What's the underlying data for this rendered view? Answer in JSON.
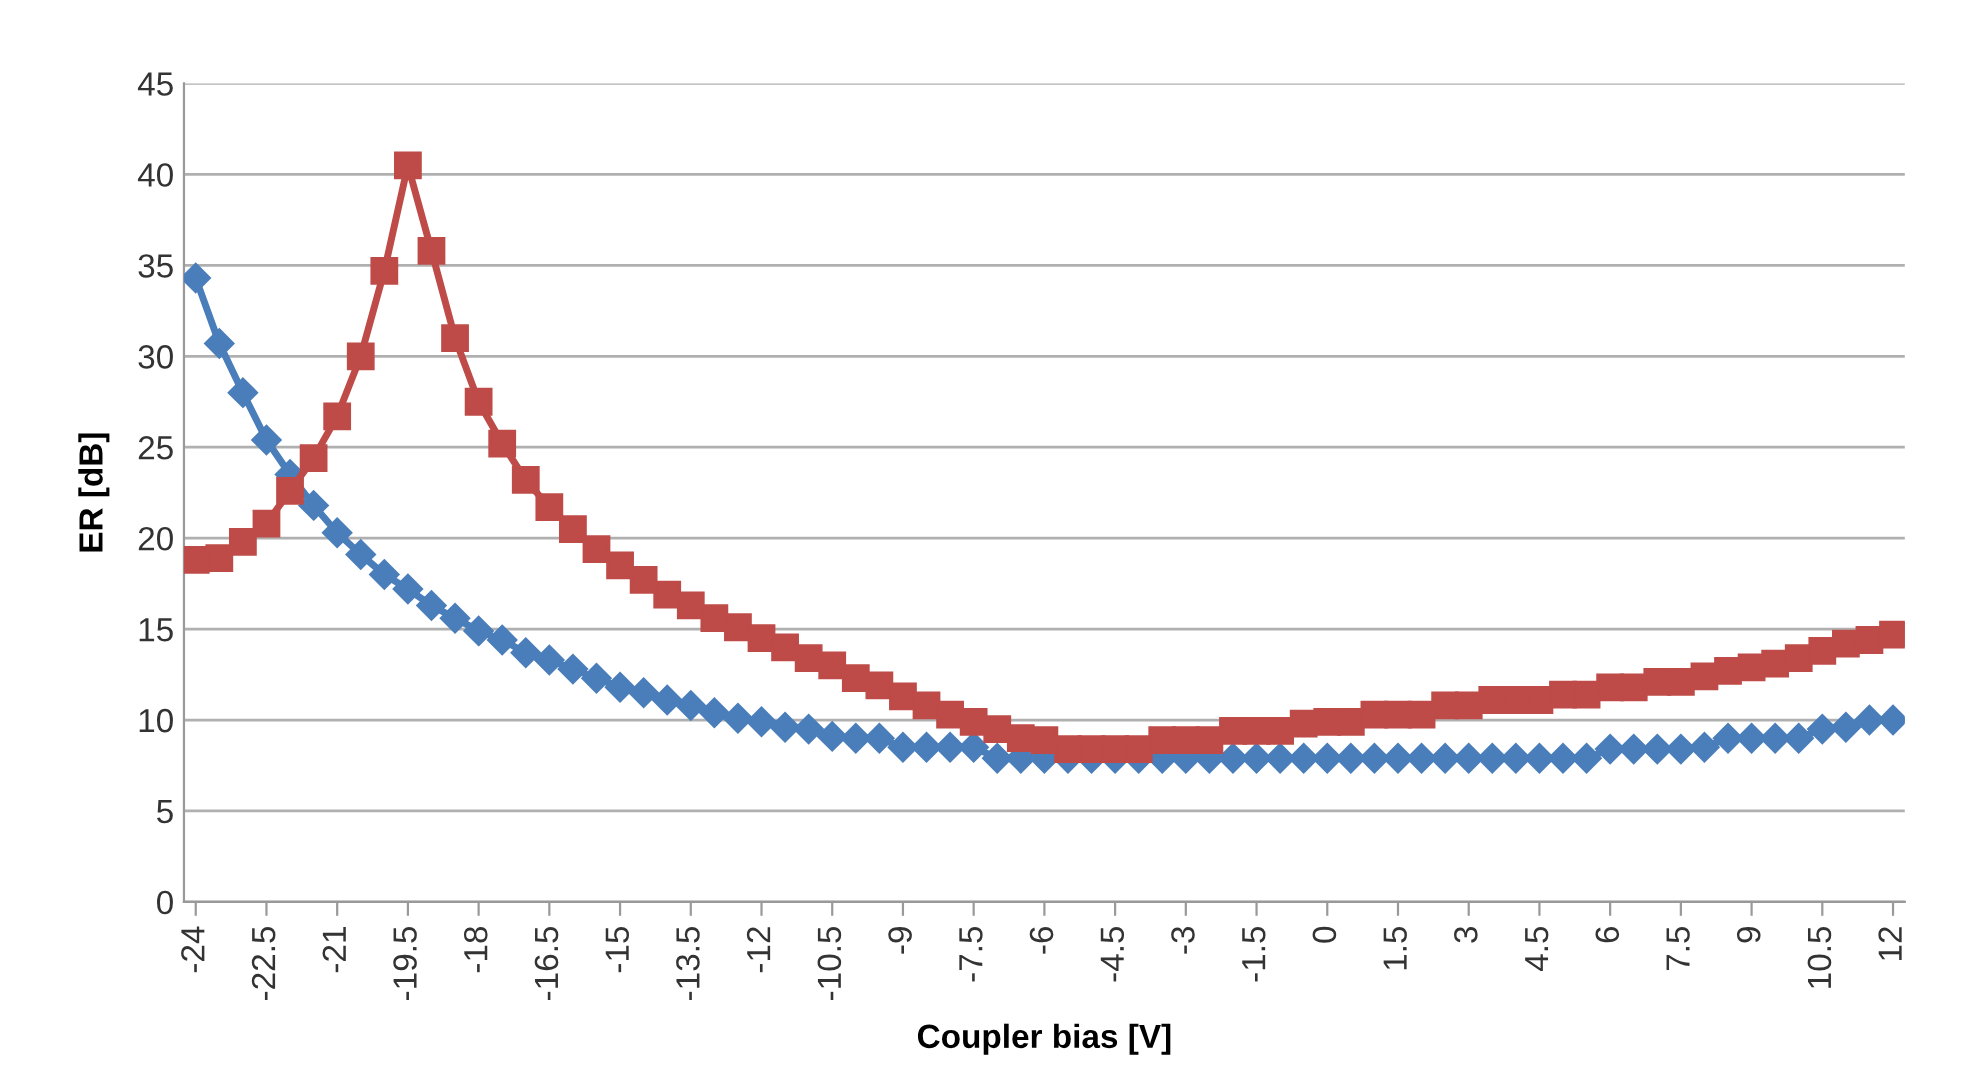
{
  "chart_data": {
    "type": "line",
    "xlabel": "Coupler bias [V]",
    "ylabel": "ER [dB]",
    "x": [
      -24,
      -23.5,
      -23,
      -22.5,
      -22,
      -21.5,
      -21,
      -20.5,
      -20,
      -19.5,
      -19,
      -18.5,
      -18,
      -17.5,
      -17,
      -16.5,
      -16,
      -15.5,
      -15,
      -14.5,
      -14,
      -13.5,
      -13,
      -12.5,
      -12,
      -11.5,
      -11,
      -10.5,
      -10,
      -9.5,
      -9,
      -8.5,
      -8,
      -7.5,
      -7,
      -6.5,
      -6,
      -5.5,
      -5,
      -4.5,
      -4,
      -3.5,
      -3,
      -2.5,
      -2,
      -1.5,
      -1,
      -0.5,
      0,
      0.5,
      1,
      1.5,
      2,
      2.5,
      3,
      3.5,
      4,
      4.5,
      5,
      5.5,
      6,
      6.5,
      7,
      7.5,
      8,
      8.5,
      9,
      9.5,
      10,
      10.5,
      11,
      11.5,
      12
    ],
    "series": [
      {
        "color": "#4a7ebb",
        "marker": "diamond",
        "values": [
          34.3,
          30.7,
          28.0,
          25.4,
          23.5,
          21.8,
          20.3,
          19.1,
          18.0,
          17.2,
          16.3,
          15.6,
          14.9,
          14.4,
          13.7,
          13.3,
          12.8,
          12.3,
          11.8,
          11.5,
          11.1,
          10.8,
          10.4,
          10.1,
          9.9,
          9.6,
          9.5,
          9.1,
          9.0,
          9.0,
          8.5,
          8.5,
          8.5,
          8.5,
          7.9,
          7.9,
          7.9,
          7.9,
          7.9,
          7.9,
          7.9,
          7.9,
          7.9,
          7.9,
          7.9,
          7.9,
          7.9,
          7.9,
          7.9,
          7.9,
          7.9,
          7.9,
          7.9,
          7.9,
          7.9,
          7.9,
          7.9,
          7.9,
          7.9,
          7.9,
          8.4,
          8.4,
          8.4,
          8.4,
          8.5,
          9.0,
          9.0,
          9.0,
          9.0,
          9.5,
          9.6,
          10.0,
          10.0
        ]
      },
      {
        "color": "#be4b48",
        "marker": "square",
        "values": [
          18.8,
          18.9,
          19.8,
          20.8,
          22.6,
          24.4,
          26.7,
          30.0,
          34.7,
          40.5,
          35.8,
          31.0,
          27.5,
          25.2,
          23.2,
          21.7,
          20.5,
          19.4,
          18.5,
          17.7,
          16.9,
          16.3,
          15.6,
          15.1,
          14.5,
          14.0,
          13.4,
          13.0,
          12.3,
          11.9,
          11.3,
          10.8,
          10.3,
          9.9,
          9.5,
          9.0,
          8.9,
          8.4,
          8.4,
          8.4,
          8.4,
          8.9,
          8.9,
          8.9,
          9.4,
          9.4,
          9.4,
          9.8,
          9.9,
          9.9,
          10.3,
          10.3,
          10.3,
          10.8,
          10.8,
          11.1,
          11.1,
          11.1,
          11.4,
          11.4,
          11.8,
          11.8,
          12.1,
          12.1,
          12.4,
          12.7,
          12.9,
          13.1,
          13.4,
          13.8,
          14.2,
          14.4,
          14.7
        ]
      }
    ],
    "xlim": [
      -24.25,
      12.25
    ],
    "xticks": [
      -24,
      -22.5,
      -21,
      -19.5,
      -18,
      -16.5,
      -15,
      -13.5,
      -12,
      -10.5,
      -9,
      -7.5,
      -6,
      -4.5,
      -3,
      -1.5,
      0,
      1.5,
      3,
      4.5,
      6,
      7.5,
      9,
      10.5,
      12
    ],
    "ylim": [
      0,
      45
    ],
    "yticks": [
      0,
      5,
      10,
      15,
      20,
      25,
      30,
      35,
      40,
      45
    ],
    "grid": "y",
    "line_style": "solid"
  }
}
